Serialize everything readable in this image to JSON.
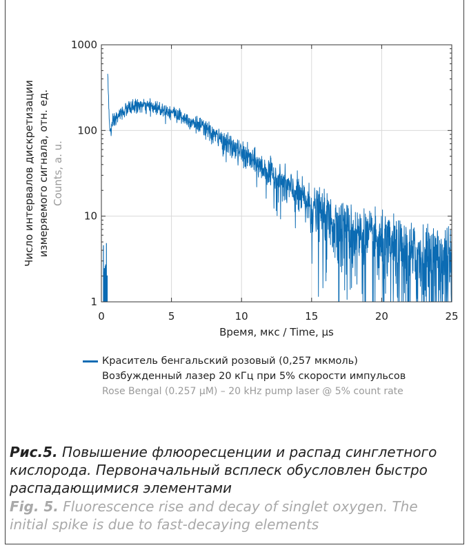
{
  "chart_data": {
    "type": "line",
    "yscale": "log",
    "xlim": [
      0,
      25
    ],
    "ylim": [
      1,
      1000
    ],
    "xticks": [
      0,
      5,
      10,
      15,
      20,
      25
    ],
    "yticks": [
      1,
      10,
      100,
      1000
    ],
    "xtick_labels": [
      "0",
      "5",
      "10",
      "15",
      "20",
      "25"
    ],
    "ytick_labels": [
      "1",
      "10",
      "100",
      "1000"
    ],
    "xlabel": "Время, мкс / Time, µs",
    "ylabel_lines": [
      "Число интервалов дискретизации",
      "измеряемого сигнала, отн. ед."
    ],
    "ylabel_en": "Counts, a. u.",
    "grid": true,
    "legend_position": "bottom",
    "series": [
      {
        "name": "Краситель бенгальский розовый (0,257 мкмоль)",
        "color": "#0b6bb3",
        "x": [
          0.45,
          0.5,
          0.6,
          0.8,
          1.0,
          1.5,
          2.0,
          2.5,
          3.0,
          4.0,
          5.0,
          6.0,
          7.0,
          8.0,
          9.0,
          10.0,
          11.0,
          12.0,
          13.0,
          14.0,
          15.0,
          16.0,
          17.0,
          18.0,
          19.0,
          20.0,
          21.0,
          22.0,
          23.0,
          24.0,
          25.0
        ],
        "y": [
          500,
          250,
          95,
          115,
          135,
          165,
          185,
          195,
          195,
          185,
          165,
          140,
          115,
          90,
          70,
          55,
          42,
          32,
          24,
          18,
          13,
          10,
          8,
          6.5,
          5.5,
          4.5,
          4,
          3.5,
          3.2,
          3,
          3
        ]
      }
    ]
  },
  "legend": {
    "line1": "Краситель бенгальский розовый (0,257 мкмоль)",
    "line2": "Возбужденный лазер 20 кГц при 5% скорости импульсов",
    "line3": "Rose Bengal (0.257 µM) – 20 kHz pump laser @ 5% count rate"
  },
  "caption": {
    "ru_label": "Рис.5.",
    "ru_text": "Повышение флюоресценции и распад синглетного кислорода. Первоначальный всплеск обусловлен быстро распадающимися элементами",
    "en_label": "Fig. 5.",
    "en_text": "Fluorescence rise and decay of singlet oxygen. The initial spike is due to fast-decaying elements"
  }
}
